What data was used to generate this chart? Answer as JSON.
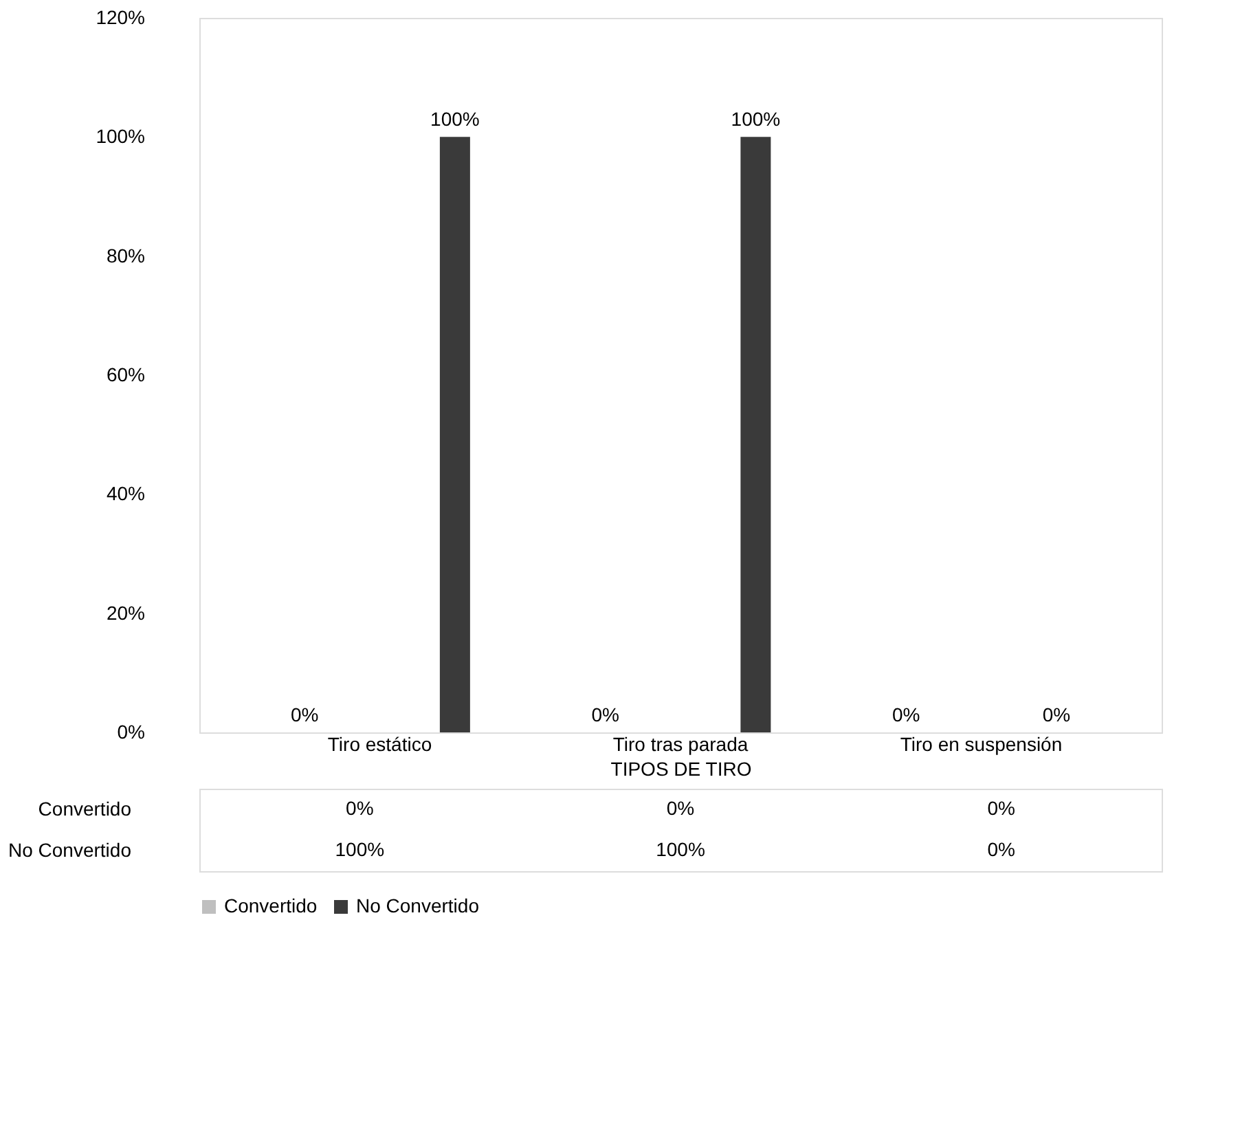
{
  "chart_data": {
    "type": "bar",
    "xlabel": "TIPOS DE TIRO",
    "categories": [
      "Tiro estático",
      "Tiro tras parada",
      "Tiro en suspensión"
    ],
    "series": [
      {
        "name": "Convertido",
        "color": "#bfbfbf",
        "values": [
          0,
          0,
          0
        ],
        "value_labels": [
          "0%",
          "0%",
          "0%"
        ]
      },
      {
        "name": "No Convertido",
        "color": "#3a3a3a",
        "values": [
          100,
          100,
          0
        ],
        "value_labels": [
          "100%",
          "100%",
          "0%"
        ]
      }
    ],
    "ylim": [
      0,
      120
    ],
    "yticks": [
      {
        "value": 0,
        "label": "0%"
      },
      {
        "value": 20,
        "label": "20%"
      },
      {
        "value": 40,
        "label": "40%"
      },
      {
        "value": 60,
        "label": "60%"
      },
      {
        "value": 80,
        "label": "80%"
      },
      {
        "value": 100,
        "label": "100%"
      },
      {
        "value": 120,
        "label": "120%"
      }
    ],
    "grid": false,
    "legend": "bottom"
  }
}
